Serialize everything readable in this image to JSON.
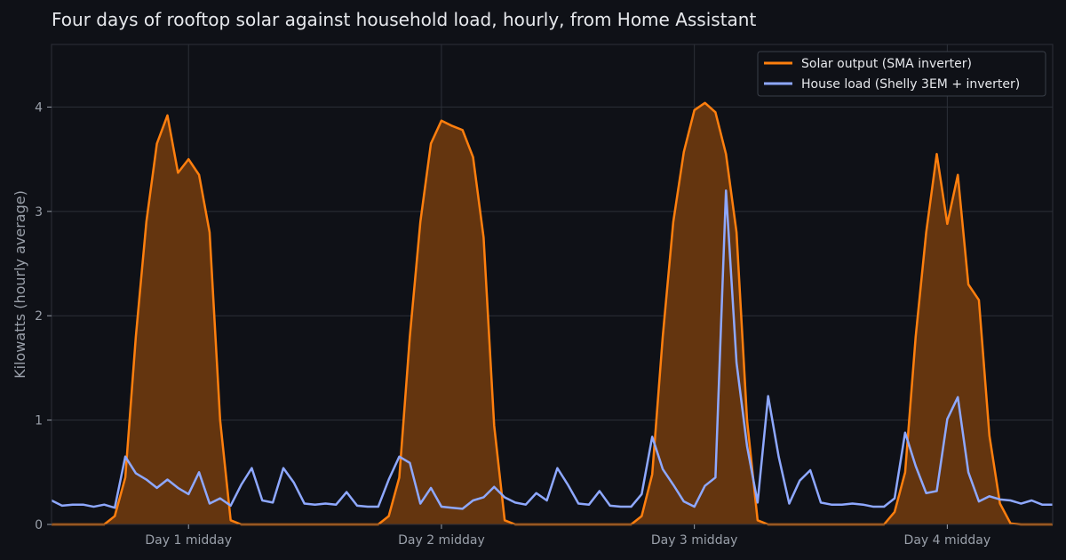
{
  "chart_data": {
    "type": "area",
    "title": "Four days of rooftop solar against household load, hourly, from Home Assistant",
    "xlabel": "",
    "ylabel": "Kilowatts (hourly average)",
    "ylim": [
      0,
      4.6
    ],
    "xlim": [
      0,
      95
    ],
    "grid": true,
    "legend_position": "top-right",
    "x_ticks": [
      {
        "x": 13,
        "label": "Day 1 midday"
      },
      {
        "x": 37,
        "label": "Day 2 midday"
      },
      {
        "x": 61,
        "label": "Day 3 midday"
      },
      {
        "x": 85,
        "label": "Day 4 midday"
      }
    ],
    "y_ticks": [
      0,
      1,
      2,
      3,
      4
    ],
    "x": [
      0,
      1,
      2,
      3,
      4,
      5,
      6,
      7,
      8,
      9,
      10,
      11,
      12,
      13,
      14,
      15,
      16,
      17,
      18,
      19,
      20,
      21,
      22,
      23,
      24,
      25,
      26,
      27,
      28,
      29,
      30,
      31,
      32,
      33,
      34,
      35,
      36,
      37,
      38,
      39,
      40,
      41,
      42,
      43,
      44,
      45,
      46,
      47,
      48,
      49,
      50,
      51,
      52,
      53,
      54,
      55,
      56,
      57,
      58,
      59,
      60,
      61,
      62,
      63,
      64,
      65,
      66,
      67,
      68,
      69,
      70,
      71,
      72,
      73,
      74,
      75,
      76,
      77,
      78,
      79,
      80,
      81,
      82,
      83,
      84,
      85,
      86,
      87,
      88,
      89,
      90,
      91,
      92,
      93,
      94,
      95
    ],
    "series": [
      {
        "name": "Solar output (SMA inverter)",
        "color": "#ff7f0e",
        "fill": "#64350f",
        "values": [
          0,
          0,
          0,
          0,
          0,
          0,
          0.08,
          0.45,
          1.8,
          2.9,
          3.65,
          3.92,
          3.37,
          3.5,
          3.35,
          2.8,
          1.0,
          0.04,
          0,
          0,
          0,
          0,
          0,
          0,
          0,
          0,
          0,
          0,
          0,
          0,
          0,
          0,
          0.08,
          0.45,
          1.8,
          2.9,
          3.65,
          3.87,
          3.82,
          3.78,
          3.52,
          2.75,
          0.95,
          0.04,
          0,
          0,
          0,
          0,
          0,
          0,
          0,
          0,
          0,
          0,
          0,
          0,
          0.08,
          0.48,
          1.8,
          2.9,
          3.57,
          3.97,
          4.04,
          3.95,
          3.55,
          2.8,
          1.0,
          0.04,
          0,
          0,
          0,
          0,
          0,
          0,
          0,
          0,
          0,
          0,
          0,
          0,
          0.12,
          0.5,
          1.8,
          2.8,
          3.55,
          2.88,
          3.35,
          2.3,
          2.15,
          0.85,
          0.2,
          0.01,
          0,
          0,
          0,
          0
        ]
      },
      {
        "name": "House load (Shelly 3EM + inverter)",
        "color": "#8ea8ff",
        "values": [
          0.23,
          0.18,
          0.19,
          0.19,
          0.17,
          0.19,
          0.16,
          0.65,
          0.49,
          0.43,
          0.35,
          0.43,
          0.35,
          0.29,
          0.5,
          0.2,
          0.25,
          0.18,
          0.38,
          0.54,
          0.23,
          0.21,
          0.54,
          0.4,
          0.2,
          0.19,
          0.2,
          0.19,
          0.31,
          0.18,
          0.17,
          0.17,
          0.43,
          0.65,
          0.59,
          0.2,
          0.35,
          0.17,
          0.16,
          0.15,
          0.23,
          0.26,
          0.36,
          0.26,
          0.21,
          0.19,
          0.3,
          0.23,
          0.54,
          0.38,
          0.2,
          0.19,
          0.32,
          0.18,
          0.17,
          0.17,
          0.29,
          0.84,
          0.53,
          0.38,
          0.22,
          0.17,
          0.37,
          0.45,
          3.2,
          1.55,
          0.75,
          0.21,
          1.23,
          0.65,
          0.2,
          0.42,
          0.52,
          0.21,
          0.19,
          0.19,
          0.2,
          0.19,
          0.17,
          0.17,
          0.25,
          0.88,
          0.56,
          0.3,
          0.32,
          1.01,
          1.22,
          0.5,
          0.22,
          0.27,
          0.24,
          0.23,
          0.2,
          0.23,
          0.19,
          0.19
        ]
      }
    ]
  },
  "colors": {
    "background": "#0f1117",
    "grid": "#2c3038",
    "text": "#9aa0aa",
    "title": "#e6e8ec"
  }
}
